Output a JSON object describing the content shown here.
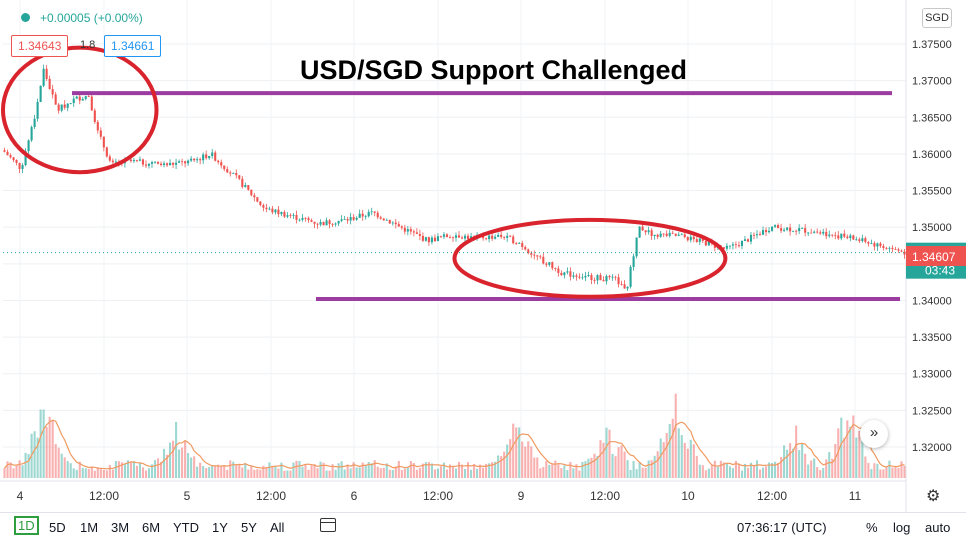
{
  "header": {
    "change": "+0.00005 (+0.00%)",
    "sell_price": "1.34643",
    "spread": "1.8",
    "buy_price": "1.34661",
    "currency": "SGD"
  },
  "chart_data": {
    "type": "candlestick",
    "title": "USD/SGD Support Challenged",
    "ylim": [
      1.3155,
      1.381
    ],
    "y_ticks": [
      "1.37500",
      "1.37000",
      "1.36500",
      "1.36000",
      "1.35500",
      "1.35000",
      "1.34500",
      "1.34000",
      "1.33500",
      "1.33000",
      "1.32500",
      "1.32000"
    ],
    "x_ticks": [
      "4",
      "12:00",
      "5",
      "12:00",
      "6",
      "12:00",
      "9",
      "12:00",
      "10",
      "12:00",
      "11"
    ],
    "price_path": [
      [
        0,
        1.3605
      ],
      [
        0.02,
        1.358
      ],
      [
        0.035,
        1.365
      ],
      [
        0.045,
        1.3715
      ],
      [
        0.06,
        1.366
      ],
      [
        0.08,
        1.3675
      ],
      [
        0.095,
        1.368
      ],
      [
        0.105,
        1.363
      ],
      [
        0.12,
        1.3585
      ],
      [
        0.14,
        1.359
      ],
      [
        0.18,
        1.3585
      ],
      [
        0.21,
        1.359
      ],
      [
        0.23,
        1.36
      ],
      [
        0.26,
        1.3565
      ],
      [
        0.29,
        1.3525
      ],
      [
        0.32,
        1.3515
      ],
      [
        0.35,
        1.3505
      ],
      [
        0.38,
        1.351
      ],
      [
        0.41,
        1.352
      ],
      [
        0.44,
        1.35
      ],
      [
        0.47,
        1.3482
      ],
      [
        0.5,
        1.349
      ],
      [
        0.52,
        1.3485
      ],
      [
        0.55,
        1.3488
      ],
      [
        0.57,
        1.348
      ],
      [
        0.59,
        1.346
      ],
      [
        0.62,
        1.3437
      ],
      [
        0.65,
        1.3432
      ],
      [
        0.68,
        1.3428
      ],
      [
        0.69,
        1.341
      ],
      [
        0.7,
        1.3475
      ],
      [
        0.705,
        1.35
      ],
      [
        0.72,
        1.349
      ],
      [
        0.75,
        1.3488
      ],
      [
        0.78,
        1.3478
      ],
      [
        0.8,
        1.347
      ],
      [
        0.82,
        1.348
      ],
      [
        0.85,
        1.35
      ],
      [
        0.88,
        1.3497
      ],
      [
        0.91,
        1.3492
      ],
      [
        0.94,
        1.3485
      ],
      [
        0.97,
        1.3475
      ],
      [
        1.0,
        1.34652
      ]
    ],
    "volume_spikes": [
      {
        "x": 0.045,
        "v": 0.9
      },
      {
        "x": 0.19,
        "v": 0.55
      },
      {
        "x": 0.57,
        "v": 0.6
      },
      {
        "x": 0.67,
        "v": 0.55
      },
      {
        "x": 0.745,
        "v": 1.0
      },
      {
        "x": 0.875,
        "v": 0.45
      },
      {
        "x": 0.935,
        "v": 0.95
      }
    ],
    "support_line": {
      "price": 1.3402,
      "color": "#9c3ba0"
    },
    "resistance_line": {
      "price": 1.3683,
      "color": "#9c3ba0"
    },
    "highlight_ellipses": [
      {
        "x_from": 0.0,
        "x_to": 0.17,
        "price_top": 1.3745,
        "price_bottom": 1.3575
      },
      {
        "x_from": 0.5,
        "x_to": 0.8,
        "price_top": 1.351,
        "price_bottom": 1.3405
      }
    ],
    "last_price": "1.34652",
    "countdown": "03:43",
    "bid_label": "1.34607",
    "colors": {
      "up": "#26a69a",
      "down": "#ef5350",
      "ellipse": "#d9232d",
      "line": "#9c3ba0",
      "volume_ma": "#f09a60"
    }
  },
  "bottom_bar": {
    "timeframes": [
      "1D",
      "5D",
      "1M",
      "3M",
      "6M",
      "YTD",
      "1Y",
      "5Y",
      "All"
    ],
    "active": "1D",
    "time": "07:36:17 (UTC)",
    "percent": "%",
    "log": "log",
    "auto": "auto"
  },
  "icons": {
    "gear": "gear-icon",
    "scroll": "double-chevron-right-icon",
    "calendar": "calendar-range-icon"
  }
}
